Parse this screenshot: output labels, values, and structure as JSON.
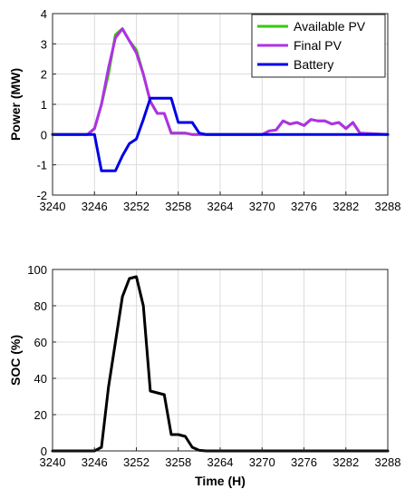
{
  "chart_data": [
    {
      "type": "line",
      "xlabel": "",
      "ylabel": "Power (MW)",
      "xlim": [
        3240,
        3288
      ],
      "ylim": [
        -2,
        4
      ],
      "xticks": [
        3240,
        3246,
        3252,
        3258,
        3264,
        3270,
        3276,
        3282,
        3288
      ],
      "yticks": [
        -2,
        -1,
        0,
        1,
        2,
        3,
        4
      ],
      "grid": true,
      "legend_position": "top-right",
      "series": [
        {
          "name": "Available PV",
          "color": "#33cc00",
          "x": [
            3240,
            3245,
            3246,
            3247,
            3248,
            3249,
            3250,
            3251,
            3252,
            3253,
            3254,
            3255,
            3256,
            3257,
            3258,
            3259,
            3260,
            3261,
            3262,
            3270,
            3271,
            3272,
            3273,
            3274,
            3275,
            3276,
            3277,
            3278,
            3279,
            3280,
            3281,
            3282,
            3283,
            3284,
            3288
          ],
          "y": [
            0,
            0,
            0.2,
            1.0,
            2.0,
            3.3,
            3.5,
            3.1,
            2.8,
            2.0,
            1.1,
            0.7,
            0.7,
            0.05,
            0.05,
            0.05,
            0.0,
            0.0,
            0.0,
            0.0,
            0.12,
            0.15,
            0.45,
            0.35,
            0.4,
            0.3,
            0.5,
            0.45,
            0.45,
            0.35,
            0.4,
            0.2,
            0.4,
            0.05,
            0.0
          ]
        },
        {
          "name": "Final PV",
          "color": "#b22fe8",
          "x": [
            3240,
            3245,
            3246,
            3247,
            3248,
            3249,
            3250,
            3251,
            3252,
            3253,
            3254,
            3255,
            3256,
            3257,
            3258,
            3259,
            3260,
            3261,
            3262,
            3270,
            3271,
            3272,
            3273,
            3274,
            3275,
            3276,
            3277,
            3278,
            3279,
            3280,
            3281,
            3282,
            3283,
            3284,
            3288
          ],
          "y": [
            0,
            0,
            0.2,
            1.0,
            2.2,
            3.2,
            3.5,
            3.1,
            2.7,
            2.0,
            1.1,
            0.7,
            0.7,
            0.05,
            0.05,
            0.05,
            0.0,
            0.0,
            0.0,
            0.0,
            0.12,
            0.15,
            0.45,
            0.35,
            0.4,
            0.3,
            0.5,
            0.45,
            0.45,
            0.35,
            0.4,
            0.2,
            0.4,
            0.05,
            0.0
          ]
        },
        {
          "name": "Battery",
          "color": "#0000e6",
          "x": [
            3240,
            3246,
            3247,
            3248,
            3249,
            3250,
            3251,
            3252,
            3253,
            3254,
            3255,
            3256,
            3257,
            3258,
            3259,
            3260,
            3261,
            3262,
            3288
          ],
          "y": [
            0,
            0,
            -1.2,
            -1.2,
            -1.2,
            -0.7,
            -0.3,
            -0.15,
            0.5,
            1.2,
            1.2,
            1.2,
            1.2,
            0.4,
            0.4,
            0.4,
            0.05,
            0.0,
            0.0
          ]
        }
      ]
    },
    {
      "type": "line",
      "xlabel": "Time (H)",
      "ylabel": "SOC (%)",
      "xlim": [
        3240,
        3288
      ],
      "ylim": [
        0,
        100
      ],
      "xticks": [
        3240,
        3246,
        3252,
        3258,
        3264,
        3270,
        3276,
        3282,
        3288
      ],
      "yticks": [
        0,
        20,
        40,
        60,
        80,
        100
      ],
      "grid": true,
      "series": [
        {
          "color": "#000000",
          "x": [
            3240,
            3246,
            3247,
            3248,
            3249,
            3250,
            3251,
            3252,
            3253,
            3254,
            3255,
            3256,
            3257,
            3258,
            3259,
            3260,
            3261,
            3262,
            3288
          ],
          "y": [
            0,
            0,
            2,
            35,
            60,
            85,
            95,
            96,
            80,
            33,
            32,
            31,
            9,
            9,
            8,
            2,
            0.3,
            0,
            0
          ]
        }
      ]
    }
  ]
}
